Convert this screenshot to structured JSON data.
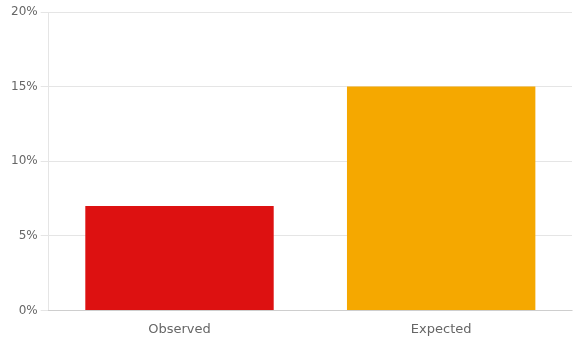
{
  "chart_data": {
    "type": "bar",
    "categories": [
      "Observed",
      "Expected"
    ],
    "values": [
      0.07,
      0.15
    ],
    "colors": [
      "#dd1111",
      "#f5a800"
    ],
    "ylim": [
      0,
      0.2
    ],
    "yticks": [
      {
        "value": 0.0,
        "label": "0%"
      },
      {
        "value": 0.05,
        "label": "5%"
      },
      {
        "value": 0.1,
        "label": "10%"
      },
      {
        "value": 0.15,
        "label": "15%"
      },
      {
        "value": 0.2,
        "label": "20%"
      }
    ],
    "grid": "y"
  }
}
